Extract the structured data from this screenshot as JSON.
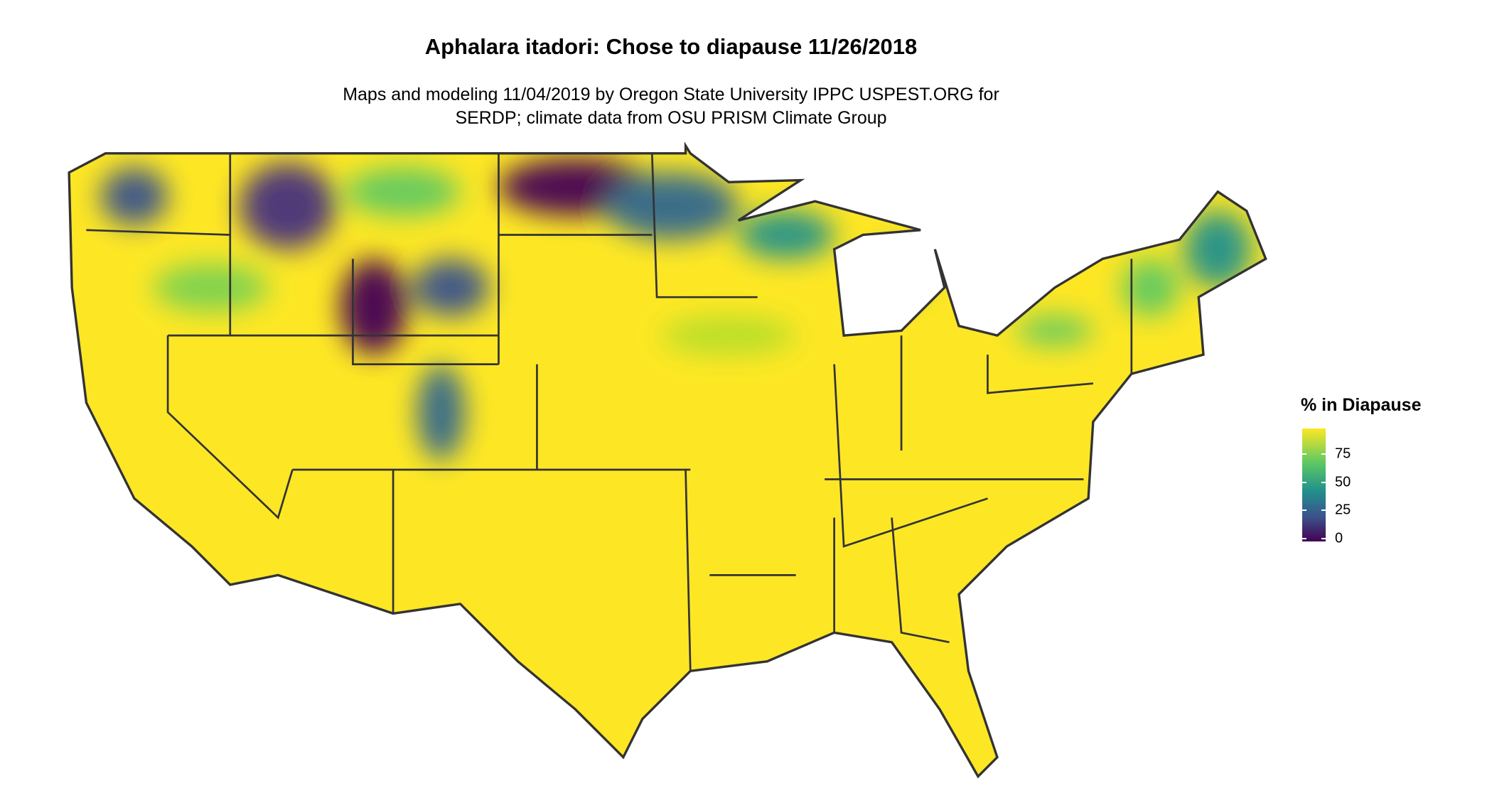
{
  "title": "Aphalara itadori: Chose to diapause 11/26/2018",
  "subtitle": [
    "Maps and modeling 11/04/2019 by Oregon State University IPPC USPEST.ORG for",
    "SERDP; climate data from OSU PRISM Climate Group"
  ],
  "legend": {
    "title": "% in Diapause",
    "ticks": [
      "75",
      "50",
      "25",
      "0"
    ],
    "tick_values": [
      75,
      50,
      25,
      0
    ],
    "range": [
      0,
      100
    ],
    "colormap": "viridis",
    "colors": [
      "#440154",
      "#3b528b",
      "#21918c",
      "#5ec962",
      "#fde725"
    ]
  },
  "map": {
    "region": "contiguous United States",
    "dominant_color": "#fde725",
    "border_color": "#333333"
  }
}
